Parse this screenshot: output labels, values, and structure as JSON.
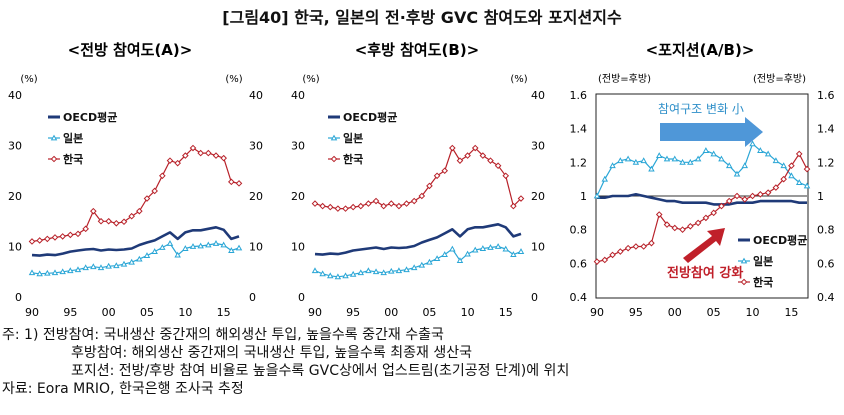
{
  "title": "[그림40] 한국, 일본의 전·후방 GVC 참여도와 포지션지수",
  "notes": {
    "line1_prefix": "주: 1) ",
    "line1": "전방참여: 국내생산 중간재의 해외생산 투입, 높을수록 중간재 수출국",
    "line2": "후방참여: 해외생산 중간재의 국내생산 투입, 높을수록 최종재 생산국",
    "line3": "포지션: 전방/후방 참여 비율로 높을수록 GVC상에서 업스트림(초기공정 단계)에 위치",
    "source": "자료: Eora MRIO, 한국은행 조사국 추정"
  },
  "chart_data": [
    {
      "type": "line",
      "title": "<전방 참여도(A)>",
      "y_unit_left": "(%)",
      "y_unit_right": "(%)",
      "ylim": [
        0,
        40
      ],
      "yticks": [
        0,
        10,
        20,
        30,
        40
      ],
      "xlim": [
        1990,
        2017
      ],
      "xticks": [
        1990,
        1995,
        2000,
        2005,
        2010,
        2015
      ],
      "xtick_labels": [
        "90",
        "95",
        "00",
        "05",
        "10",
        "15"
      ],
      "x": [
        1990,
        1991,
        1992,
        1993,
        1994,
        1995,
        1996,
        1997,
        1998,
        1999,
        2000,
        2001,
        2002,
        2003,
        2004,
        2005,
        2006,
        2007,
        2008,
        2009,
        2010,
        2011,
        2012,
        2013,
        2014,
        2015,
        2016,
        2017
      ],
      "series": [
        {
          "name": "OECD평균",
          "color": "#1f3a78",
          "marker": "none",
          "values": [
            8.3,
            8.2,
            8.4,
            8.3,
            8.6,
            9.0,
            9.2,
            9.4,
            9.5,
            9.2,
            9.4,
            9.3,
            9.4,
            9.6,
            10.3,
            10.8,
            11.2,
            12.0,
            12.8,
            11.5,
            12.8,
            13.2,
            13.2,
            13.5,
            13.8,
            13.3,
            11.5,
            12.0
          ]
        },
        {
          "name": "일본",
          "color": "#2aa6d6",
          "marker": "triangle",
          "values": [
            4.8,
            4.6,
            4.7,
            4.8,
            5.0,
            5.2,
            5.4,
            5.8,
            6.0,
            5.8,
            6.1,
            6.2,
            6.5,
            6.9,
            7.5,
            8.2,
            9.0,
            9.8,
            10.6,
            8.3,
            9.6,
            10.0,
            10.1,
            10.3,
            10.6,
            10.3,
            9.2,
            9.7
          ]
        },
        {
          "name": "한국",
          "color": "#b8222a",
          "marker": "diamond",
          "values": [
            11.0,
            11.2,
            11.5,
            11.8,
            12.0,
            12.3,
            12.5,
            13.5,
            17.0,
            15.0,
            15.0,
            14.6,
            14.9,
            16.0,
            17.0,
            19.5,
            21.0,
            24.0,
            27.0,
            26.5,
            28.0,
            29.5,
            28.5,
            28.5,
            28.0,
            27.5,
            22.8,
            22.5
          ]
        }
      ]
    },
    {
      "type": "line",
      "title": "<후방 참여도(B)>",
      "y_unit_left": "(%)",
      "y_unit_right": "(%)",
      "ylim": [
        0,
        40
      ],
      "yticks": [
        0,
        10,
        20,
        30,
        40
      ],
      "xlim": [
        1990,
        2017
      ],
      "xticks": [
        1990,
        1995,
        2000,
        2005,
        2010,
        2015
      ],
      "xtick_labels": [
        "90",
        "95",
        "00",
        "05",
        "10",
        "15"
      ],
      "x": [
        1990,
        1991,
        1992,
        1993,
        1994,
        1995,
        1996,
        1997,
        1998,
        1999,
        2000,
        2001,
        2002,
        2003,
        2004,
        2005,
        2006,
        2007,
        2008,
        2009,
        2010,
        2011,
        2012,
        2013,
        2014,
        2015,
        2016,
        2017
      ],
      "series": [
        {
          "name": "OECD평균",
          "color": "#1f3a78",
          "marker": "none",
          "values": [
            8.5,
            8.4,
            8.6,
            8.5,
            8.8,
            9.2,
            9.4,
            9.6,
            9.8,
            9.5,
            9.8,
            9.7,
            9.8,
            10.1,
            10.8,
            11.3,
            11.8,
            12.6,
            13.4,
            12.0,
            13.4,
            13.8,
            13.8,
            14.1,
            14.4,
            13.8,
            12.0,
            12.5
          ]
        },
        {
          "name": "일본",
          "color": "#2aa6d6",
          "marker": "triangle",
          "values": [
            5.2,
            4.6,
            4.2,
            4.0,
            4.2,
            4.5,
            4.8,
            5.2,
            5.0,
            4.8,
            5.1,
            5.2,
            5.4,
            5.8,
            6.3,
            6.9,
            7.6,
            8.4,
            9.5,
            7.2,
            8.5,
            9.3,
            9.6,
            9.8,
            10.0,
            9.5,
            8.4,
            9.0
          ]
        },
        {
          "name": "한국",
          "color": "#b8222a",
          "marker": "diamond",
          "values": [
            18.5,
            18.0,
            17.8,
            17.5,
            17.5,
            17.8,
            18.0,
            18.5,
            19.0,
            18.0,
            18.5,
            18.0,
            18.5,
            19.0,
            20.0,
            22.0,
            24.0,
            25.0,
            29.5,
            27.0,
            28.0,
            29.5,
            28.0,
            27.0,
            26.0,
            24.0,
            18.0,
            19.5
          ]
        }
      ]
    },
    {
      "type": "line",
      "title": "<포지션(A/B)>",
      "y_unit_left": "(전방=후방)",
      "y_unit_right": "(전방=후방)",
      "ylim": [
        0.4,
        1.6
      ],
      "yticks": [
        0.4,
        0.6,
        0.8,
        1.0,
        1.2,
        1.4,
        1.6
      ],
      "ytick_labels": [
        "0.4",
        "0.6",
        "0.8",
        "1",
        "1.2",
        "1.4",
        "1.6"
      ],
      "reference_line": 1.0,
      "xlim": [
        1990,
        2017
      ],
      "xticks": [
        1990,
        1995,
        2000,
        2005,
        2010,
        2015
      ],
      "xtick_labels": [
        "90",
        "95",
        "00",
        "05",
        "10",
        "15"
      ],
      "x": [
        1990,
        1991,
        1992,
        1993,
        1994,
        1995,
        1996,
        1997,
        1998,
        1999,
        2000,
        2001,
        2002,
        2003,
        2004,
        2005,
        2006,
        2007,
        2008,
        2009,
        2010,
        2011,
        2012,
        2013,
        2014,
        2015,
        2016,
        2017
      ],
      "series": [
        {
          "name": "OECD평균",
          "color": "#1f3a78",
          "marker": "none",
          "values": [
            0.99,
            0.99,
            1.0,
            1.0,
            1.0,
            1.01,
            1.0,
            0.99,
            0.98,
            0.97,
            0.97,
            0.96,
            0.96,
            0.96,
            0.96,
            0.95,
            0.95,
            0.95,
            0.96,
            0.96,
            0.96,
            0.97,
            0.97,
            0.97,
            0.97,
            0.97,
            0.96,
            0.96
          ]
        },
        {
          "name": "일본",
          "color": "#2aa6d6",
          "marker": "triangle",
          "values": [
            1.0,
            1.1,
            1.18,
            1.21,
            1.22,
            1.2,
            1.21,
            1.16,
            1.24,
            1.22,
            1.22,
            1.2,
            1.2,
            1.22,
            1.27,
            1.25,
            1.22,
            1.18,
            1.13,
            1.18,
            1.31,
            1.27,
            1.25,
            1.21,
            1.18,
            1.12,
            1.08,
            1.06
          ]
        },
        {
          "name": "한국",
          "color": "#b8222a",
          "marker": "diamond",
          "values": [
            0.61,
            0.62,
            0.65,
            0.67,
            0.69,
            0.7,
            0.7,
            0.72,
            0.89,
            0.83,
            0.81,
            0.8,
            0.82,
            0.84,
            0.87,
            0.9,
            0.94,
            0.97,
            1.0,
            0.98,
            1.0,
            1.01,
            1.02,
            1.05,
            1.1,
            1.18,
            1.25,
            1.16
          ]
        }
      ],
      "annotations": [
        {
          "text": "참여구조 변화 小",
          "color": "#2e8fc9"
        },
        {
          "text": "전방참여 강화",
          "color": "#c0202a"
        }
      ]
    }
  ]
}
